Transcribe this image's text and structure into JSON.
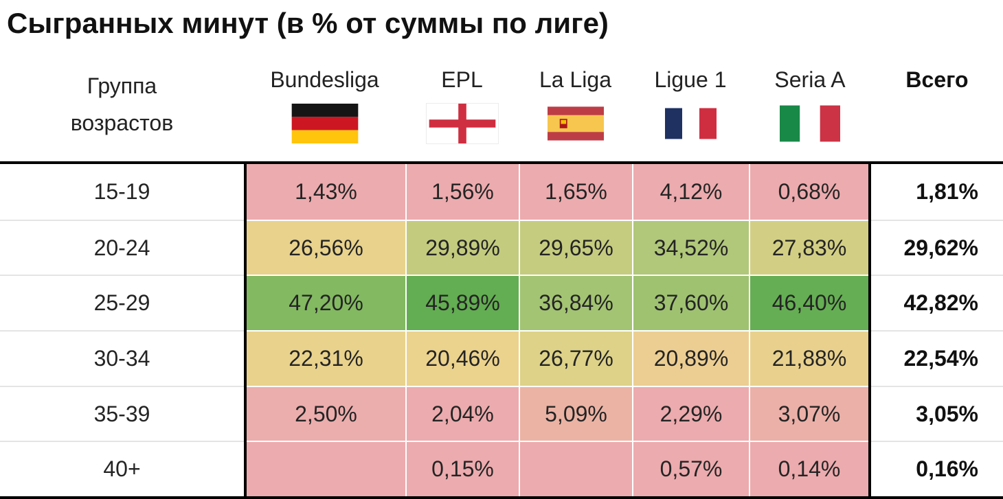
{
  "title": "Сыгранных минут (в % от суммы по лиге)",
  "table": {
    "age_header_line1": "Группа",
    "age_header_line2": "возрастов",
    "total_label": "Всего",
    "columns": [
      {
        "label": "Bundesliga",
        "flag": "germany"
      },
      {
        "label": "EPL",
        "flag": "england"
      },
      {
        "label": "La Liga",
        "flag": "spain"
      },
      {
        "label": "Ligue 1",
        "flag": "france"
      },
      {
        "label": "Seria A",
        "flag": "italy"
      }
    ],
    "rows": [
      {
        "age": "15-19",
        "values": [
          "1,43%",
          "1,56%",
          "1,65%",
          "4,12%",
          "0,68%"
        ],
        "colors": [
          "#ecabae",
          "#ecabae",
          "#ecabae",
          "#ecabae",
          "#ecabae"
        ],
        "total": "1,81%"
      },
      {
        "age": "20-24",
        "values": [
          "26,56%",
          "29,89%",
          "29,65%",
          "34,52%",
          "27,83%"
        ],
        "colors": [
          "#e8d28c",
          "#c3cb7e",
          "#c5cc7f",
          "#b1c77a",
          "#d2cf84"
        ],
        "total": "29,62%"
      },
      {
        "age": "25-29",
        "values": [
          "47,20%",
          "45,89%",
          "36,84%",
          "37,60%",
          "46,40%"
        ],
        "colors": [
          "#83b961",
          "#63ad52",
          "#a3c473",
          "#9fc271",
          "#65ae53"
        ],
        "total": "42,82%"
      },
      {
        "age": "30-34",
        "values": [
          "22,31%",
          "20,46%",
          "26,77%",
          "20,89%",
          "21,88%"
        ],
        "colors": [
          "#e9d28c",
          "#ebd28d",
          "#ddd288",
          "#ecce92",
          "#e9d18d"
        ],
        "total": "22,54%"
      },
      {
        "age": "35-39",
        "values": [
          "2,50%",
          "2,04%",
          "5,09%",
          "2,29%",
          "3,07%"
        ],
        "colors": [
          "#ecadad",
          "#ecabae",
          "#ebb3a4",
          "#ecabae",
          "#ebb0a8"
        ],
        "total": "3,05%"
      },
      {
        "age": "40+",
        "values": [
          "",
          "0,15%",
          "",
          "0,57%",
          "0,14%"
        ],
        "colors": [
          "#ecabae",
          "#ecabae",
          "#ecabae",
          "#ecabae",
          "#ecabae"
        ],
        "total": "0,16%"
      }
    ]
  },
  "colors": {
    "heat_low": "#ecabae",
    "heat_mid": "#e9d28c",
    "heat_high": "#63ad52",
    "border": "#000000",
    "row_divider": "#e4e4e4"
  },
  "chart_data": {
    "type": "heatmap",
    "title": "Сыгранных минут (в % от суммы по лиге)",
    "row_axis_label": "Группа возрастов",
    "rows": [
      "15-19",
      "20-24",
      "25-29",
      "30-34",
      "35-39",
      "40+"
    ],
    "columns": [
      "Bundesliga",
      "EPL",
      "La Liga",
      "Ligue 1",
      "Seria A"
    ],
    "values_percent": [
      [
        1.43,
        1.56,
        1.65,
        4.12,
        0.68
      ],
      [
        26.56,
        29.89,
        29.65,
        34.52,
        27.83
      ],
      [
        47.2,
        45.89,
        36.84,
        37.6,
        46.4
      ],
      [
        22.31,
        20.46,
        26.77,
        20.89,
        21.88
      ],
      [
        2.5,
        2.04,
        5.09,
        2.29,
        3.07
      ],
      [
        null,
        0.15,
        null,
        0.57,
        0.14
      ]
    ],
    "totals_label": "Всего",
    "totals_percent": [
      1.81,
      29.62,
      42.82,
      22.54,
      3.05,
      0.16
    ],
    "color_scale": "red-yellow-green",
    "legend": "none",
    "grid": "off"
  }
}
